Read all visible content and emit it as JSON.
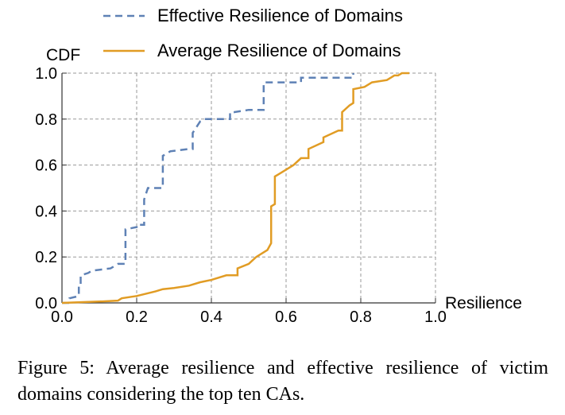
{
  "chart_data": {
    "type": "line",
    "ylabel": "CDF",
    "xlabel": "Resilience",
    "xlim": [
      0.0,
      1.0
    ],
    "ylim": [
      0.0,
      1.0
    ],
    "xticks": [
      "0.0",
      "0.2",
      "0.4",
      "0.6",
      "0.8",
      "1.0"
    ],
    "yticks": [
      "0.0",
      "0.2",
      "0.4",
      "0.6",
      "0.8",
      "1.0"
    ],
    "grid": true,
    "legend_position": "top",
    "series": [
      {
        "name": "Effective Resilience of Domains",
        "color": "#5E81B5",
        "style": "dashed",
        "x": [
          0.0,
          0.02,
          0.02,
          0.045,
          0.045,
          0.05,
          0.05,
          0.07,
          0.08,
          0.13,
          0.14,
          0.15,
          0.17,
          0.17,
          0.2,
          0.2,
          0.22,
          0.22,
          0.23,
          0.23,
          0.27,
          0.27,
          0.29,
          0.34,
          0.35,
          0.35,
          0.37,
          0.38,
          0.45,
          0.45,
          0.46,
          0.5,
          0.54,
          0.54,
          0.6,
          0.64,
          0.64,
          0.78,
          0.78
        ],
        "y": [
          0.0,
          0.0,
          0.02,
          0.03,
          0.08,
          0.08,
          0.12,
          0.13,
          0.14,
          0.15,
          0.16,
          0.17,
          0.17,
          0.32,
          0.33,
          0.34,
          0.34,
          0.45,
          0.5,
          0.5,
          0.5,
          0.64,
          0.66,
          0.67,
          0.67,
          0.74,
          0.79,
          0.8,
          0.8,
          0.83,
          0.83,
          0.84,
          0.84,
          0.96,
          0.96,
          0.96,
          0.98,
          0.98,
          1.0
        ]
      },
      {
        "name": "Average Resilience of Domains",
        "color": "#E19C24",
        "style": "solid",
        "x": [
          0.0,
          0.05,
          0.1,
          0.15,
          0.16,
          0.2,
          0.25,
          0.27,
          0.3,
          0.34,
          0.37,
          0.4,
          0.44,
          0.47,
          0.47,
          0.5,
          0.52,
          0.55,
          0.56,
          0.56,
          0.57,
          0.57,
          0.58,
          0.6,
          0.62,
          0.64,
          0.66,
          0.66,
          0.7,
          0.7,
          0.74,
          0.75,
          0.75,
          0.77,
          0.78,
          0.78,
          0.81,
          0.83,
          0.87,
          0.88,
          0.89,
          0.9,
          0.91,
          0.93
        ],
        "y": [
          0.0,
          0.003,
          0.006,
          0.01,
          0.02,
          0.03,
          0.05,
          0.06,
          0.065,
          0.075,
          0.09,
          0.1,
          0.12,
          0.12,
          0.15,
          0.17,
          0.2,
          0.23,
          0.26,
          0.42,
          0.43,
          0.55,
          0.56,
          0.58,
          0.6,
          0.63,
          0.63,
          0.67,
          0.7,
          0.72,
          0.75,
          0.75,
          0.83,
          0.86,
          0.87,
          0.93,
          0.94,
          0.96,
          0.97,
          0.98,
          0.99,
          0.99,
          1.0,
          1.0
        ]
      }
    ]
  },
  "caption": {
    "text": "Figure 5: Average resilience and effective resilience of victim domains considering the top ten CAs."
  }
}
